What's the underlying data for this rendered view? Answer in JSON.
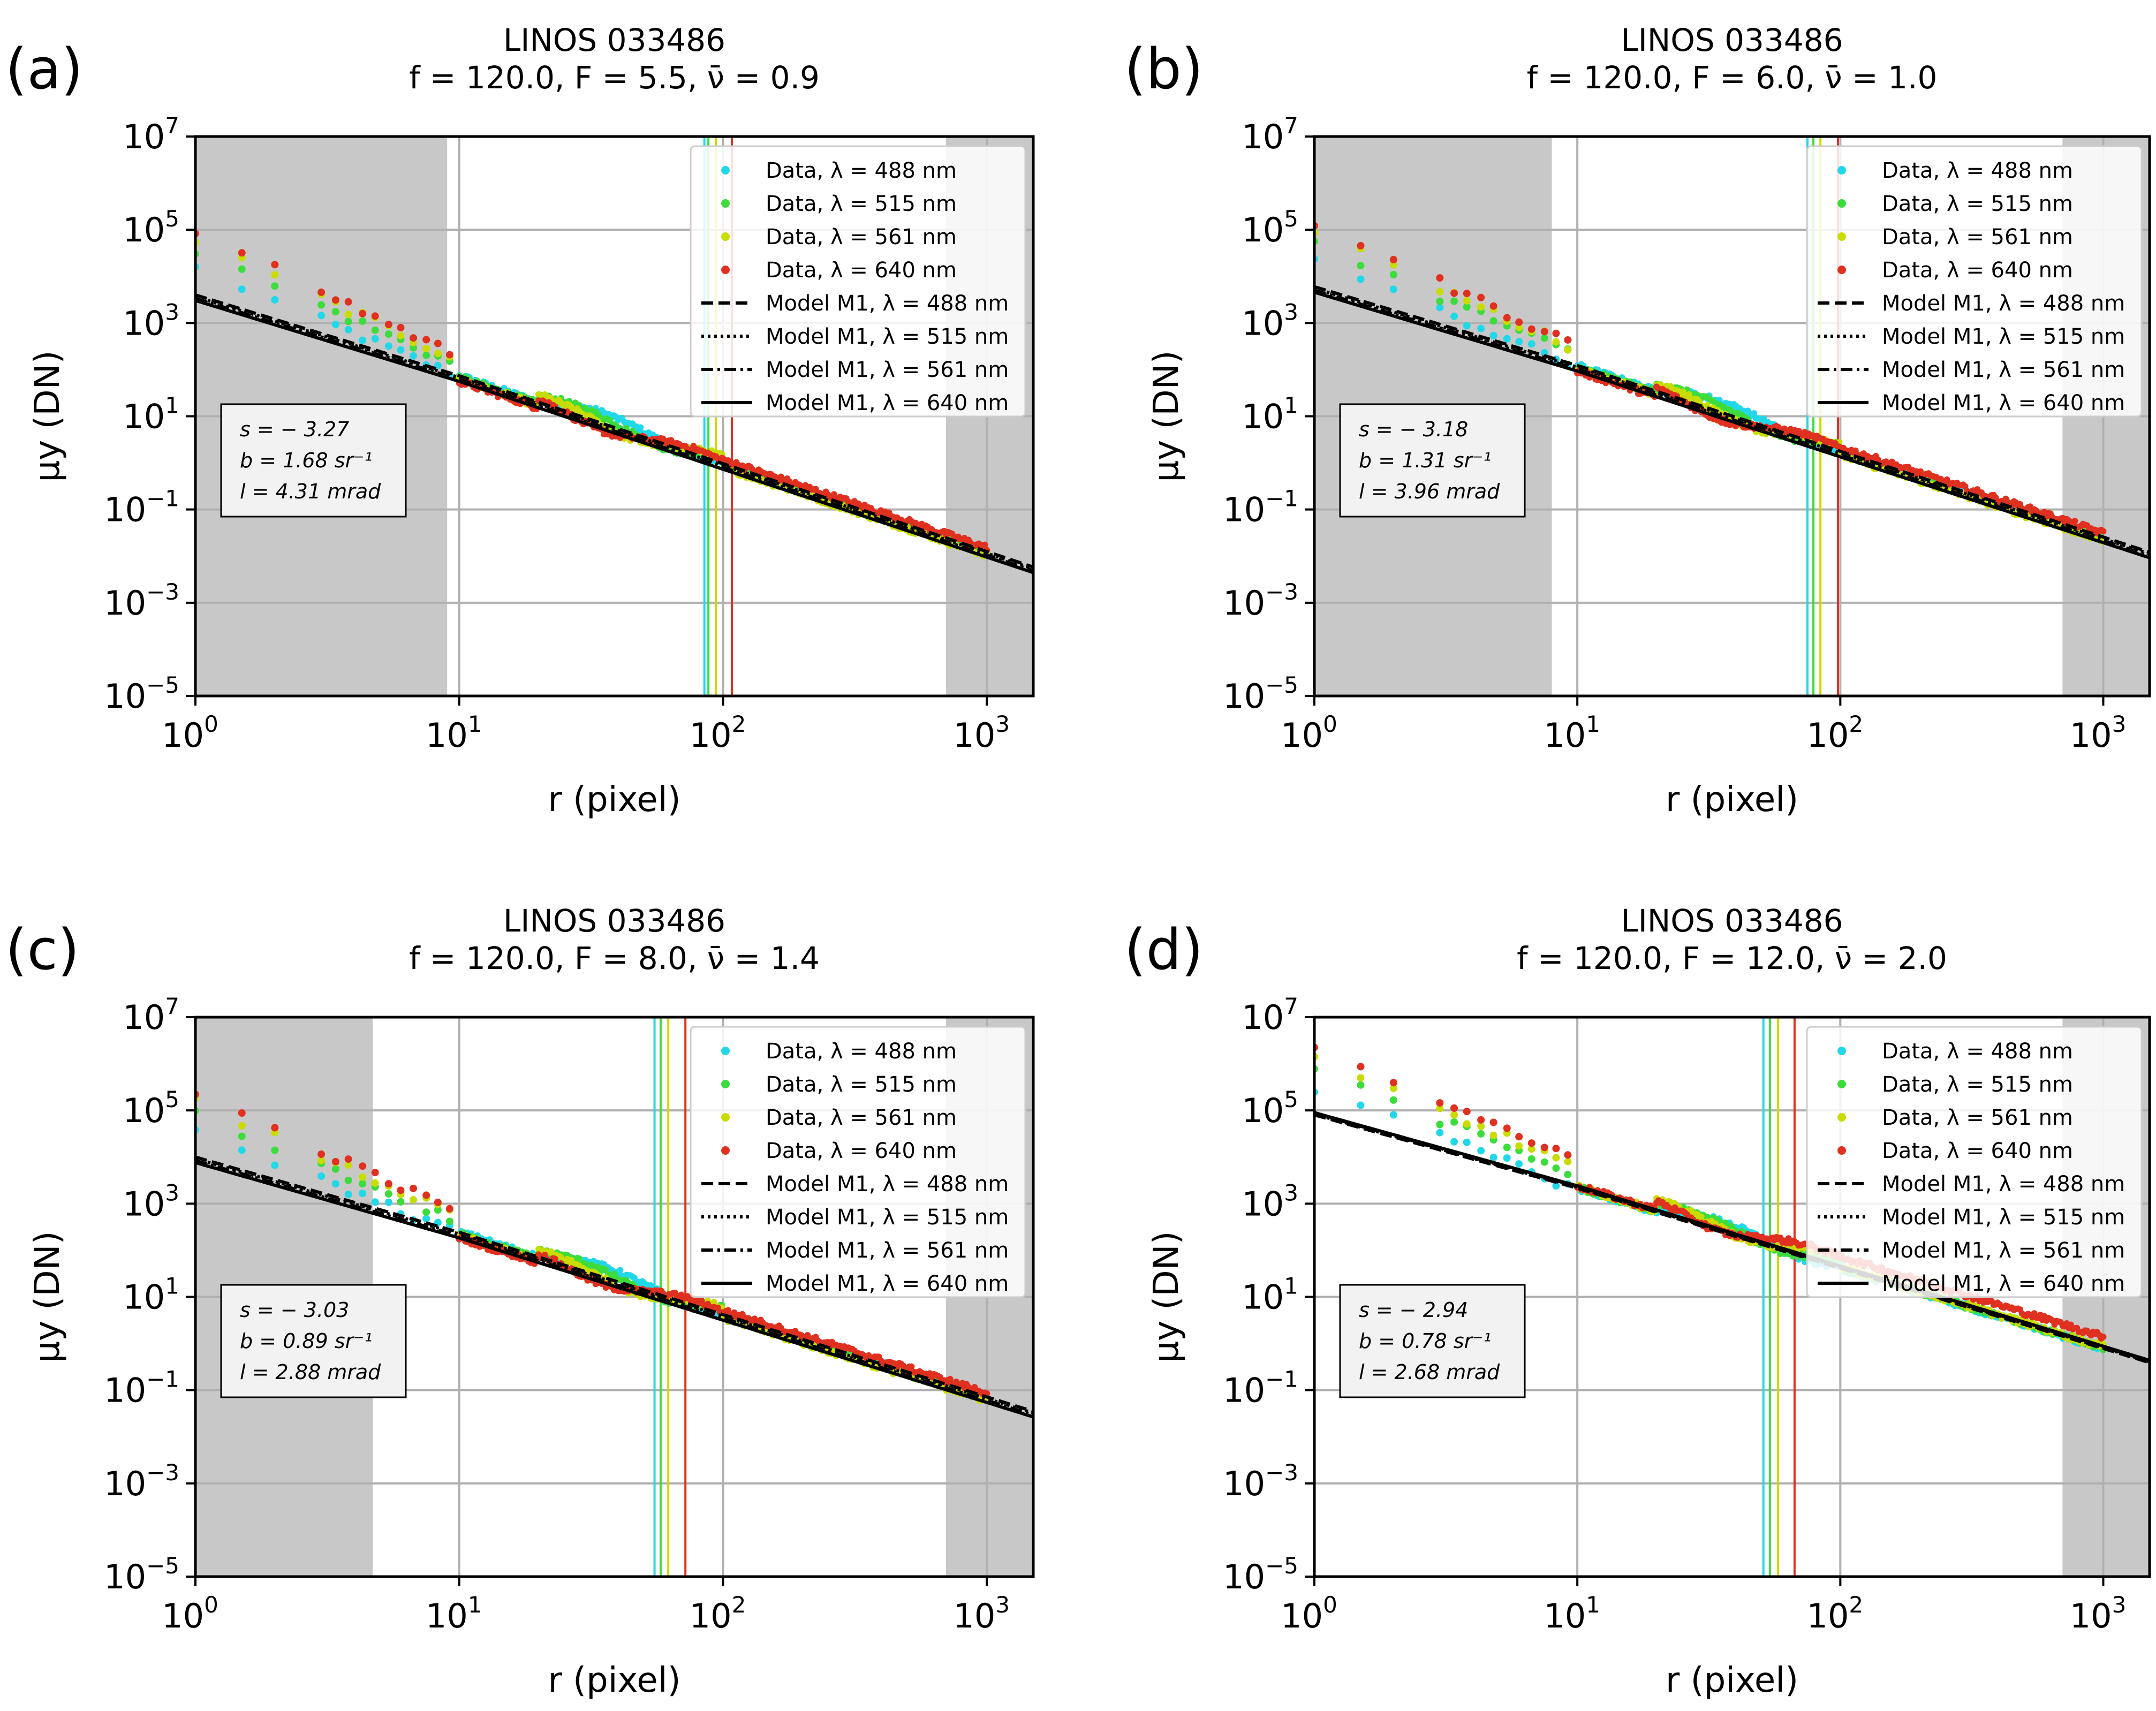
{
  "figure": {
    "panels": [
      {
        "label": "(a)",
        "title_line1": "LINOS 033486",
        "title_line2": "f = 120.0, F = 5.5, ν̄ = 0.9",
        "params": [
          "s = − 3.27",
          "b = 1.68 sr⁻¹",
          "l = 4.31 mrad"
        ],
        "s": -3.27,
        "b": 1.68,
        "l": 4.31,
        "shade_left_max": 9,
        "shade_right_min": 700,
        "vlines": [
          {
            "x": 85,
            "color": "#22d8e8"
          },
          {
            "x": 88,
            "color": "#3cdc3c"
          },
          {
            "x": 94,
            "color": "#c8dc00"
          },
          {
            "x": 108,
            "color": "#e03020"
          }
        ],
        "model_at_1": 4000,
        "model_knee_x": 2.0
      },
      {
        "label": "(b)",
        "title_line1": "LINOS 033486",
        "title_line2": "f = 120.0, F = 6.0, ν̄ = 1.0",
        "params": [
          "s = − 3.18",
          "b = 1.31 sr⁻¹",
          "l = 3.96 mrad"
        ],
        "s": -3.18,
        "b": 1.31,
        "l": 3.96,
        "shade_left_max": 8,
        "shade_right_min": 700,
        "vlines": [
          {
            "x": 75,
            "color": "#22d8e8"
          },
          {
            "x": 79,
            "color": "#3cdc3c"
          },
          {
            "x": 84,
            "color": "#c8dc00"
          },
          {
            "x": 98,
            "color": "#e03020"
          }
        ],
        "model_at_1": 6000,
        "model_knee_x": 2.0
      },
      {
        "label": "(c)",
        "title_line1": "LINOS 033486",
        "title_line2": "f = 120.0, F = 8.0, ν̄ = 1.4",
        "params": [
          "s = − 3.03",
          "b = 0.89 sr⁻¹",
          "l = 2.88 mrad"
        ],
        "s": -3.03,
        "b": 0.89,
        "l": 2.88,
        "shade_left_max": 4.7,
        "shade_right_min": 700,
        "vlines": [
          {
            "x": 55,
            "color": "#22d8e8"
          },
          {
            "x": 58,
            "color": "#3cdc3c"
          },
          {
            "x": 62,
            "color": "#c8dc00"
          },
          {
            "x": 72,
            "color": "#e03020"
          }
        ],
        "model_at_1": 10000,
        "model_knee_x": 1.5
      },
      {
        "label": "(d)",
        "title_line1": "LINOS 033486",
        "title_line2": "f = 120.0, F = 12.0, ν̄ = 2.0",
        "params": [
          "s = − 2.94",
          "b = 0.78 sr⁻¹",
          "l = 2.68 mrad"
        ],
        "s": -2.94,
        "b": 0.78,
        "l": 2.68,
        "shade_left_max": null,
        "shade_right_min": 700,
        "vlines": [
          {
            "x": 51,
            "color": "#22d8e8"
          },
          {
            "x": 54,
            "color": "#3cdc3c"
          },
          {
            "x": 58,
            "color": "#c8dc00"
          },
          {
            "x": 67,
            "color": "#e03020"
          }
        ],
        "model_at_1": 80000,
        "model_knee_x": 1.2
      }
    ]
  },
  "legend": [
    {
      "label": "Data, λ = 488 nm",
      "kind": "marker",
      "color": "#22d8e8"
    },
    {
      "label": "Data, λ = 515 nm",
      "kind": "marker",
      "color": "#3cdc3c"
    },
    {
      "label": "Data, λ = 561 nm",
      "kind": "marker",
      "color": "#c8dc00"
    },
    {
      "label": "Data, λ = 640 nm",
      "kind": "marker",
      "color": "#e03020"
    },
    {
      "label": "Model M1, λ = 488 nm",
      "kind": "line",
      "dash": "22,10"
    },
    {
      "label": "Model M1, λ = 515 nm",
      "kind": "line",
      "dash": "5,7"
    },
    {
      "label": "Model M1, λ = 561 nm",
      "kind": "line",
      "dash": "22,8,5,8"
    },
    {
      "label": "Model M1, λ = 640 nm",
      "kind": "line",
      "dash": ""
    }
  ],
  "axes": {
    "xlabel": "r (pixel)",
    "ylabel": "μy (DN)",
    "x_ticks": [
      {
        "base": "10",
        "exp": "0"
      },
      {
        "base": "10",
        "exp": "1"
      },
      {
        "base": "10",
        "exp": "2"
      },
      {
        "base": "10",
        "exp": "3"
      }
    ],
    "y_ticks": [
      {
        "base": "10",
        "exp": "7"
      },
      {
        "base": "10",
        "exp": "5"
      },
      {
        "base": "10",
        "exp": "3"
      },
      {
        "base": "10",
        "exp": "1"
      },
      {
        "base": "10",
        "exp": "−1"
      },
      {
        "base": "10",
        "exp": "−3"
      },
      {
        "base": "10",
        "exp": "−5"
      }
    ]
  },
  "chart_data": [
    {
      "type": "scatter",
      "panel": "(a)",
      "title": "LINOS 033486; f = 120.0, F = 5.5, ν̄ = 0.9",
      "xlabel": "r (pixel)",
      "ylabel": "μy (DN)",
      "xscale": "log",
      "yscale": "log",
      "xlim": [
        1,
        1500
      ],
      "ylim": [
        1e-05,
        10000000.0
      ],
      "series": [
        {
          "name": "Data, λ = 488 nm"
        },
        {
          "name": "Data, λ = 515 nm"
        },
        {
          "name": "Data, λ = 561 nm"
        },
        {
          "name": "Data, λ = 640 nm"
        },
        {
          "name": "Model M1, λ = 488 nm"
        },
        {
          "name": "Model M1, λ = 515 nm"
        },
        {
          "name": "Model M1, λ = 561 nm"
        },
        {
          "name": "Model M1, λ = 640 nm"
        }
      ],
      "annotation": {
        "s": -3.27,
        "b_sr-1": 1.68,
        "l_mrad": 4.31
      }
    },
    {
      "type": "scatter",
      "panel": "(b)",
      "title": "LINOS 033486; f = 120.0, F = 6.0, ν̄ = 1.0",
      "xlabel": "r (pixel)",
      "ylabel": "μy (DN)",
      "xscale": "log",
      "yscale": "log",
      "xlim": [
        1,
        1500
      ],
      "ylim": [
        1e-05,
        10000000.0
      ],
      "annotation": {
        "s": -3.18,
        "b_sr-1": 1.31,
        "l_mrad": 3.96
      }
    },
    {
      "type": "scatter",
      "panel": "(c)",
      "title": "LINOS 033486; f = 120.0, F = 8.0, ν̄ = 1.4",
      "xlabel": "r (pixel)",
      "ylabel": "μy (DN)",
      "xscale": "log",
      "yscale": "log",
      "xlim": [
        1,
        1500
      ],
      "ylim": [
        1e-05,
        10000000.0
      ],
      "annotation": {
        "s": -3.03,
        "b_sr-1": 0.89,
        "l_mrad": 2.88
      }
    },
    {
      "type": "scatter",
      "panel": "(d)",
      "title": "LINOS 033486; f = 120.0, F = 12.0, ν̄ = 2.0",
      "xlabel": "r (pixel)",
      "ylabel": "μy (DN)",
      "xscale": "log",
      "yscale": "log",
      "xlim": [
        1,
        1500
      ],
      "ylim": [
        1e-05,
        10000000.0
      ],
      "annotation": {
        "s": -2.94,
        "b_sr-1": 0.78,
        "l_mrad": 2.68
      }
    }
  ]
}
